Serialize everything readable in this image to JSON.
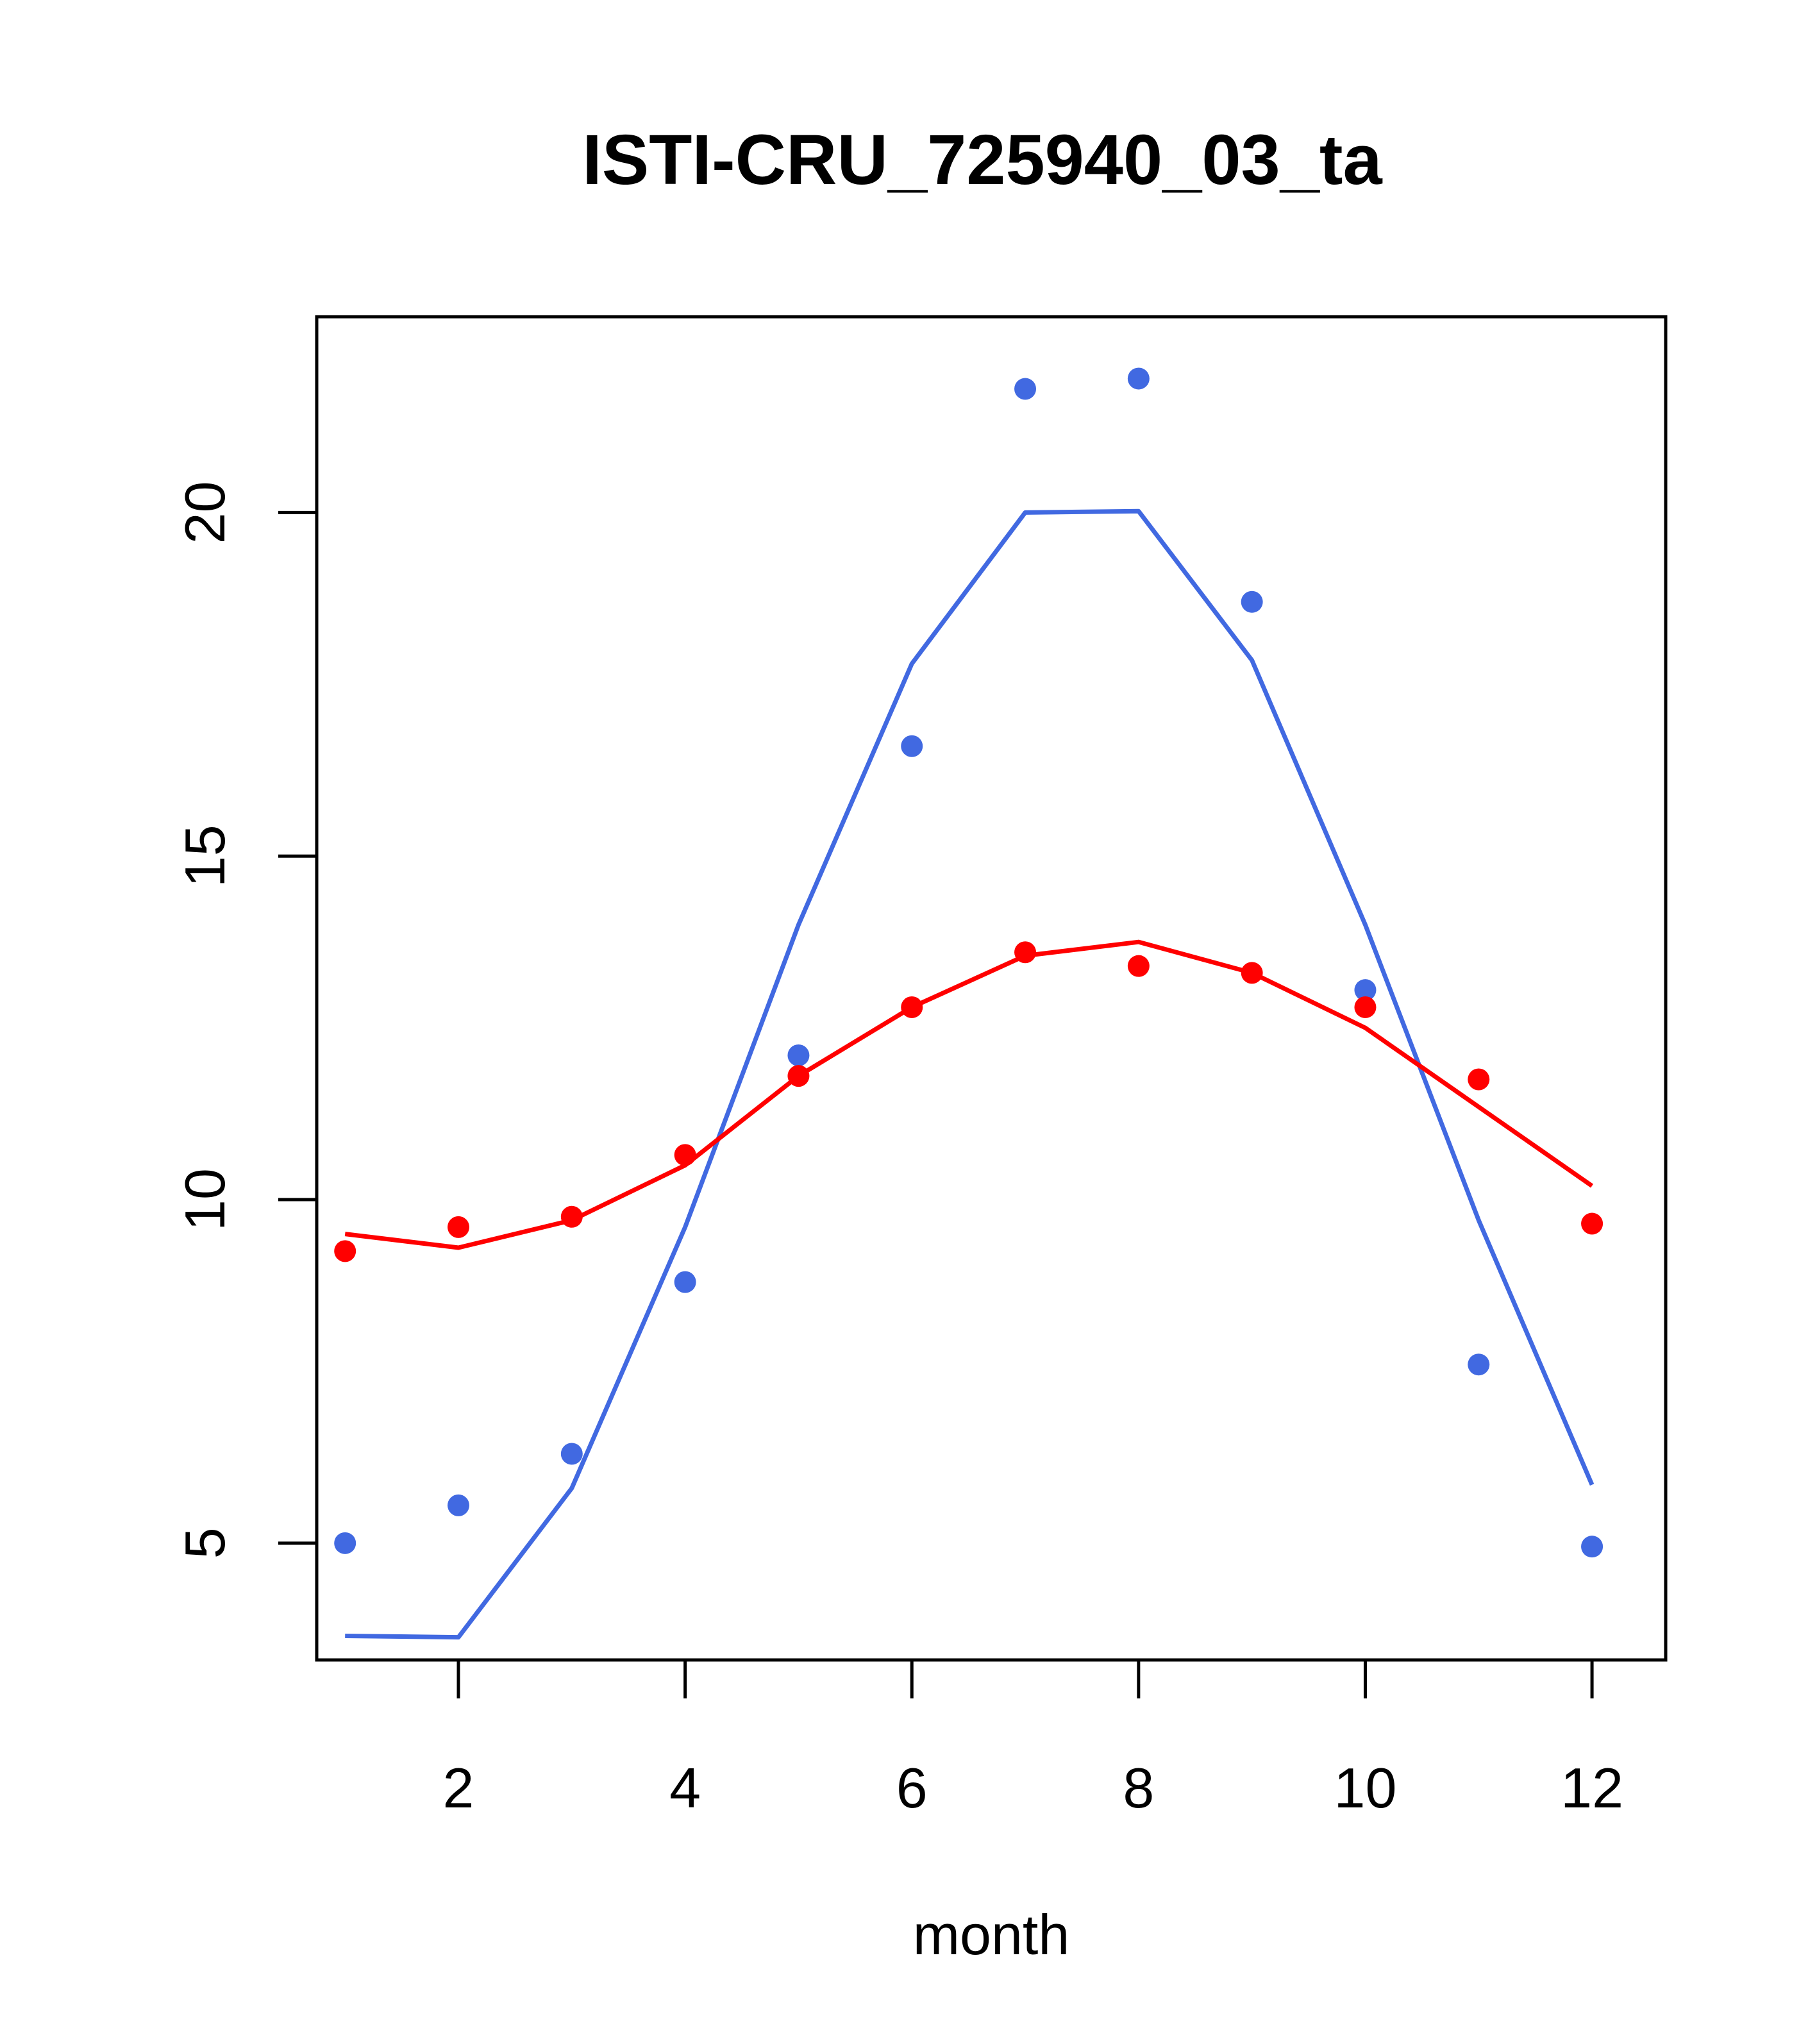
{
  "chart_data": {
    "type": "line",
    "title": "ISTI-CRU_725940_03_ta",
    "xlabel": "month",
    "ylabel": "",
    "xlim": [
      0.75,
      12.65
    ],
    "ylim": [
      3.3,
      22.85
    ],
    "x_ticks": [
      2,
      4,
      6,
      8,
      10,
      12
    ],
    "y_ticks": [
      5,
      10,
      15,
      20
    ],
    "grid": false,
    "legend": "none",
    "x": [
      1,
      2,
      3,
      4,
      5,
      6,
      7,
      8,
      9,
      10,
      11,
      12
    ],
    "series": [
      {
        "color": "#4169e1",
        "line": [
          3.65,
          3.63,
          5.8,
          9.6,
          14.0,
          17.8,
          20.0,
          20.02,
          17.85,
          14.0,
          9.7,
          5.85
        ],
        "points": [
          5.0,
          5.55,
          6.3,
          8.8,
          12.1,
          16.6,
          21.8,
          21.95,
          18.7,
          13.05,
          7.6,
          4.95
        ]
      },
      {
        "color": "#ff0000",
        "line": [
          9.5,
          9.3,
          9.7,
          10.5,
          11.8,
          12.8,
          13.55,
          13.75,
          13.3,
          12.5,
          11.35,
          10.2
        ],
        "points": [
          9.25,
          9.6,
          9.75,
          10.65,
          11.8,
          12.8,
          13.6,
          13.4,
          13.3,
          12.8,
          11.75,
          9.65
        ]
      }
    ]
  }
}
